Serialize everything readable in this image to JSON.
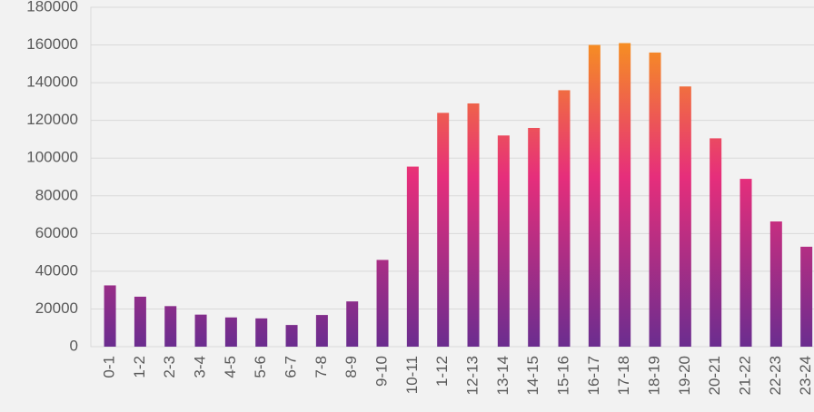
{
  "chart_data": {
    "type": "bar",
    "categories": [
      "0-1",
      "1-2",
      "2-3",
      "3-4",
      "4-5",
      "5-6",
      "6-7",
      "7-8",
      "8-9",
      "9-10",
      "10-11",
      "1-12",
      "12-13",
      "13-14",
      "14-15",
      "15-16",
      "16-17",
      "17-18",
      "18-19",
      "19-20",
      "20-21",
      "21-22",
      "22-23",
      "23-24"
    ],
    "values": [
      32500,
      26500,
      21500,
      17000,
      15500,
      15000,
      11500,
      16800,
      24000,
      46000,
      95500,
      124000,
      129000,
      112000,
      116000,
      136000,
      160000,
      161000,
      156000,
      138000,
      110500,
      89000,
      66400,
      53000
    ],
    "gradient": [
      "#6b2d8f",
      "#e62e7b",
      "#f7941d"
    ],
    "ylim": [
      0,
      180000
    ],
    "yticks": [
      0,
      20000,
      40000,
      60000,
      80000,
      100000,
      120000,
      140000,
      160000,
      180000
    ],
    "grid": true
  }
}
